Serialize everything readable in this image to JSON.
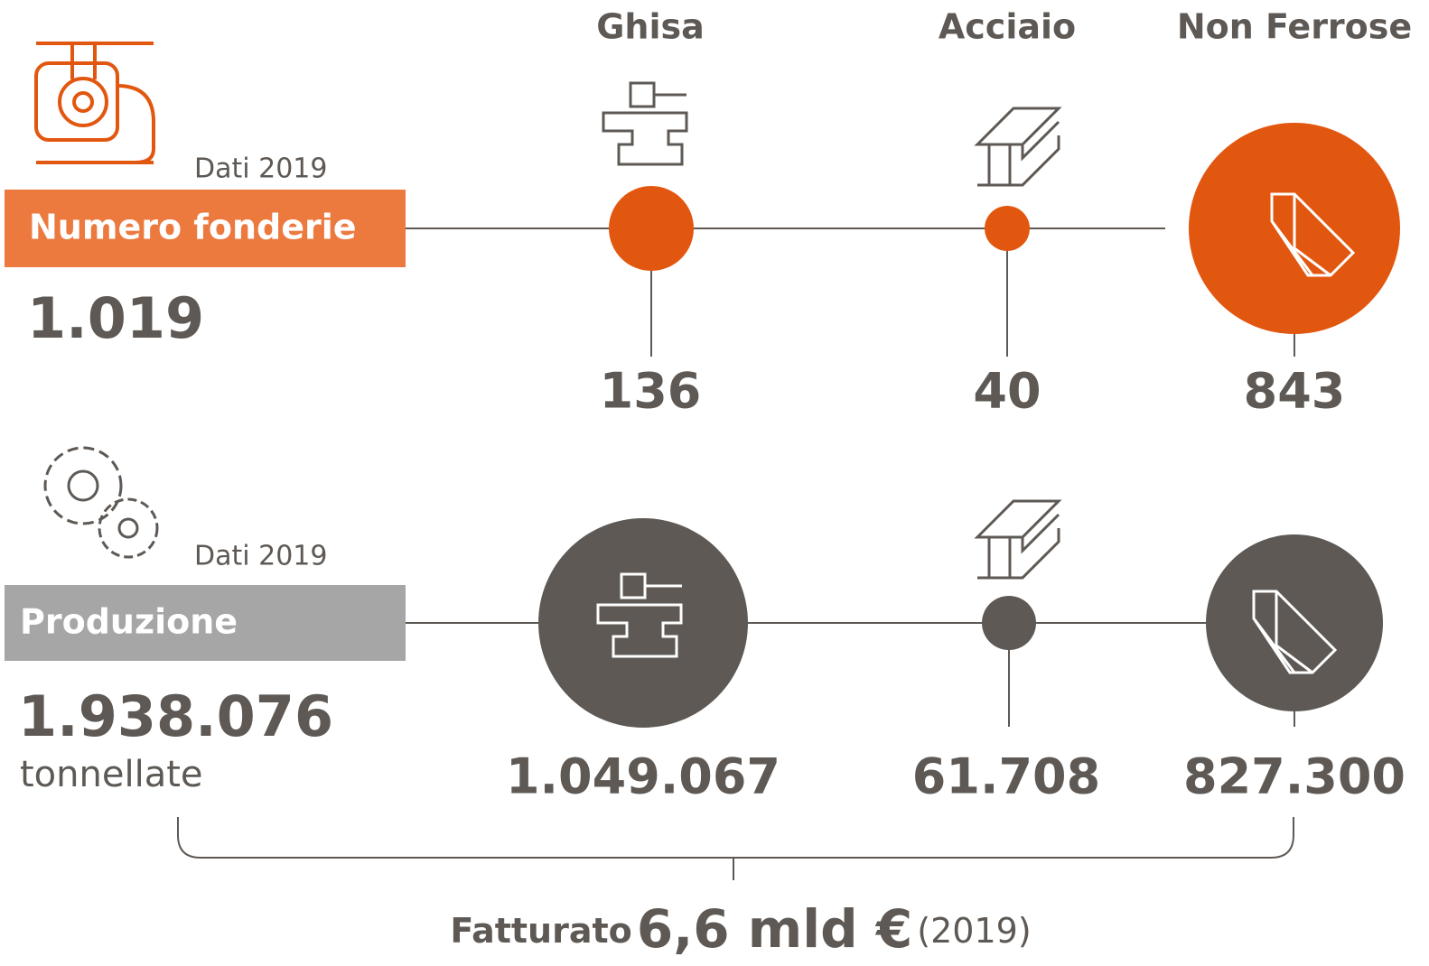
{
  "top": {
    "date_note": "Dati 2019",
    "label": "Numero fonderie",
    "total": "1.019"
  },
  "columns": [
    "Ghisa",
    "Acciaio",
    "Non Ferrose"
  ],
  "foundries": [
    "136",
    "40",
    "843"
  ],
  "bottom": {
    "date_note": "Dati 2019",
    "label": "Produzione",
    "total": "1.938.076",
    "unit": "tonnellate"
  },
  "production": [
    "1.049.067",
    "61.708",
    "827.300"
  ],
  "footer": {
    "prefix": "Fatturato",
    "amount": "6,6 mld €",
    "year": "(2019)"
  }
}
